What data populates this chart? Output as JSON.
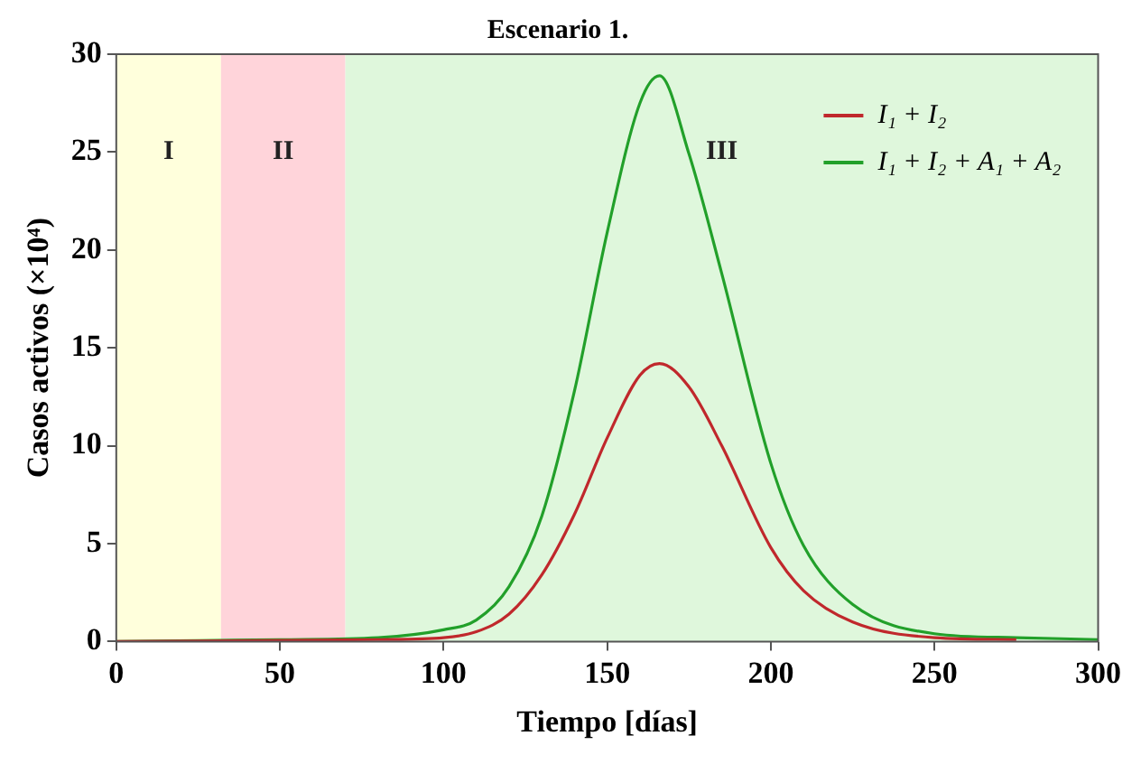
{
  "chart_data": {
    "type": "line",
    "title": "Escenario 1.",
    "xlabel": "Tiempo [días]",
    "ylabel": "Casos activos (×10⁴)",
    "xlim": [
      0,
      300
    ],
    "xticks": [
      0,
      50,
      100,
      150,
      200,
      250,
      300
    ],
    "ylim": [
      0,
      30
    ],
    "yticks": [
      0,
      5,
      10,
      15,
      20,
      25,
      30
    ],
    "grid": false,
    "legend": "top right",
    "marker": "none",
    "line_style": "solid",
    "bands": [
      {
        "axis": "x",
        "from": 0,
        "to": 32,
        "label": "I",
        "color": "#ffffdc"
      },
      {
        "axis": "x",
        "from": 32,
        "to": 70,
        "label": "II",
        "color": "#ffd4da"
      },
      {
        "axis": "x",
        "from": 70,
        "to": 300,
        "label": "III",
        "color": "#dff7dc"
      }
    ],
    "series": [
      {
        "name": "I₁ + I₂",
        "color": "#c0282c",
        "x": [
          0,
          80,
          100,
          110,
          120,
          130,
          140,
          150,
          160,
          166,
          175,
          185,
          200,
          210,
          225,
          250,
          275
        ],
        "values": [
          0,
          0.1,
          0.2,
          0.5,
          1.4,
          3.4,
          6.5,
          10.4,
          13.6,
          14.2,
          13,
          10,
          4.8,
          2.6,
          1,
          0.2,
          0.1
        ]
      },
      {
        "name": "I₁ + I₂ + A₁ + A₂",
        "color": "#22a02a",
        "x": [
          0,
          50,
          80,
          100,
          110,
          120,
          130,
          140,
          150,
          160,
          166,
          175,
          185,
          200,
          210,
          225,
          250,
          275,
          300
        ],
        "values": [
          0,
          0.1,
          0.2,
          0.6,
          1.1,
          2.8,
          6.4,
          12.8,
          20.9,
          27.5,
          28.9,
          24.9,
          18.8,
          9.1,
          4.9,
          1.9,
          0.4,
          0.2,
          0.1
        ]
      }
    ]
  }
}
